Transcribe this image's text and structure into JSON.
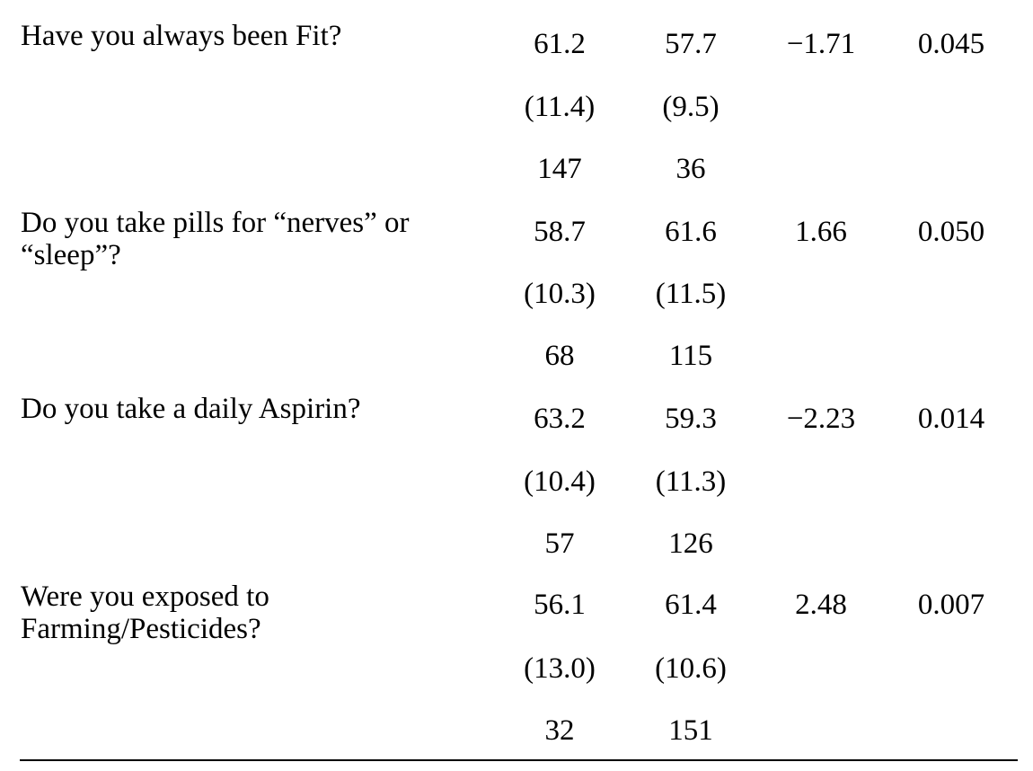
{
  "rows": [
    {
      "question": "Have you always  been Fit?",
      "mean1": "61.2",
      "mean2": "57.7",
      "sd1": "(11.4)",
      "sd2": "(9.5)",
      "n1": "147",
      "n2": "36",
      "stat": "−1.71",
      "p": "0.045"
    },
    {
      "question": "Do you take pills for “nerves” or “sleep”?",
      "mean1": "58.7",
      "mean2": "61.6",
      "sd1": "(10.3)",
      "sd2": "(11.5)",
      "n1": "68",
      "n2": "115",
      "stat": "1.66",
      "p": "0.050"
    },
    {
      "question": "Do you take a daily  Aspirin?",
      "mean1": "63.2",
      "mean2": "59.3",
      "sd1": "(10.4)",
      "sd2": "(11.3)",
      "n1": "57",
      "n2": "126",
      "stat": "−2.23",
      "p": "0.014"
    },
    {
      "question": "Were you exposed to Farming/Pesticides?",
      "mean1": "56.1",
      "mean2": "61.4",
      "sd1": "(13.0)",
      "sd2": "(10.6)",
      "n1": "32",
      "n2": "151",
      "stat": "2.48",
      "p": "0.007"
    }
  ]
}
